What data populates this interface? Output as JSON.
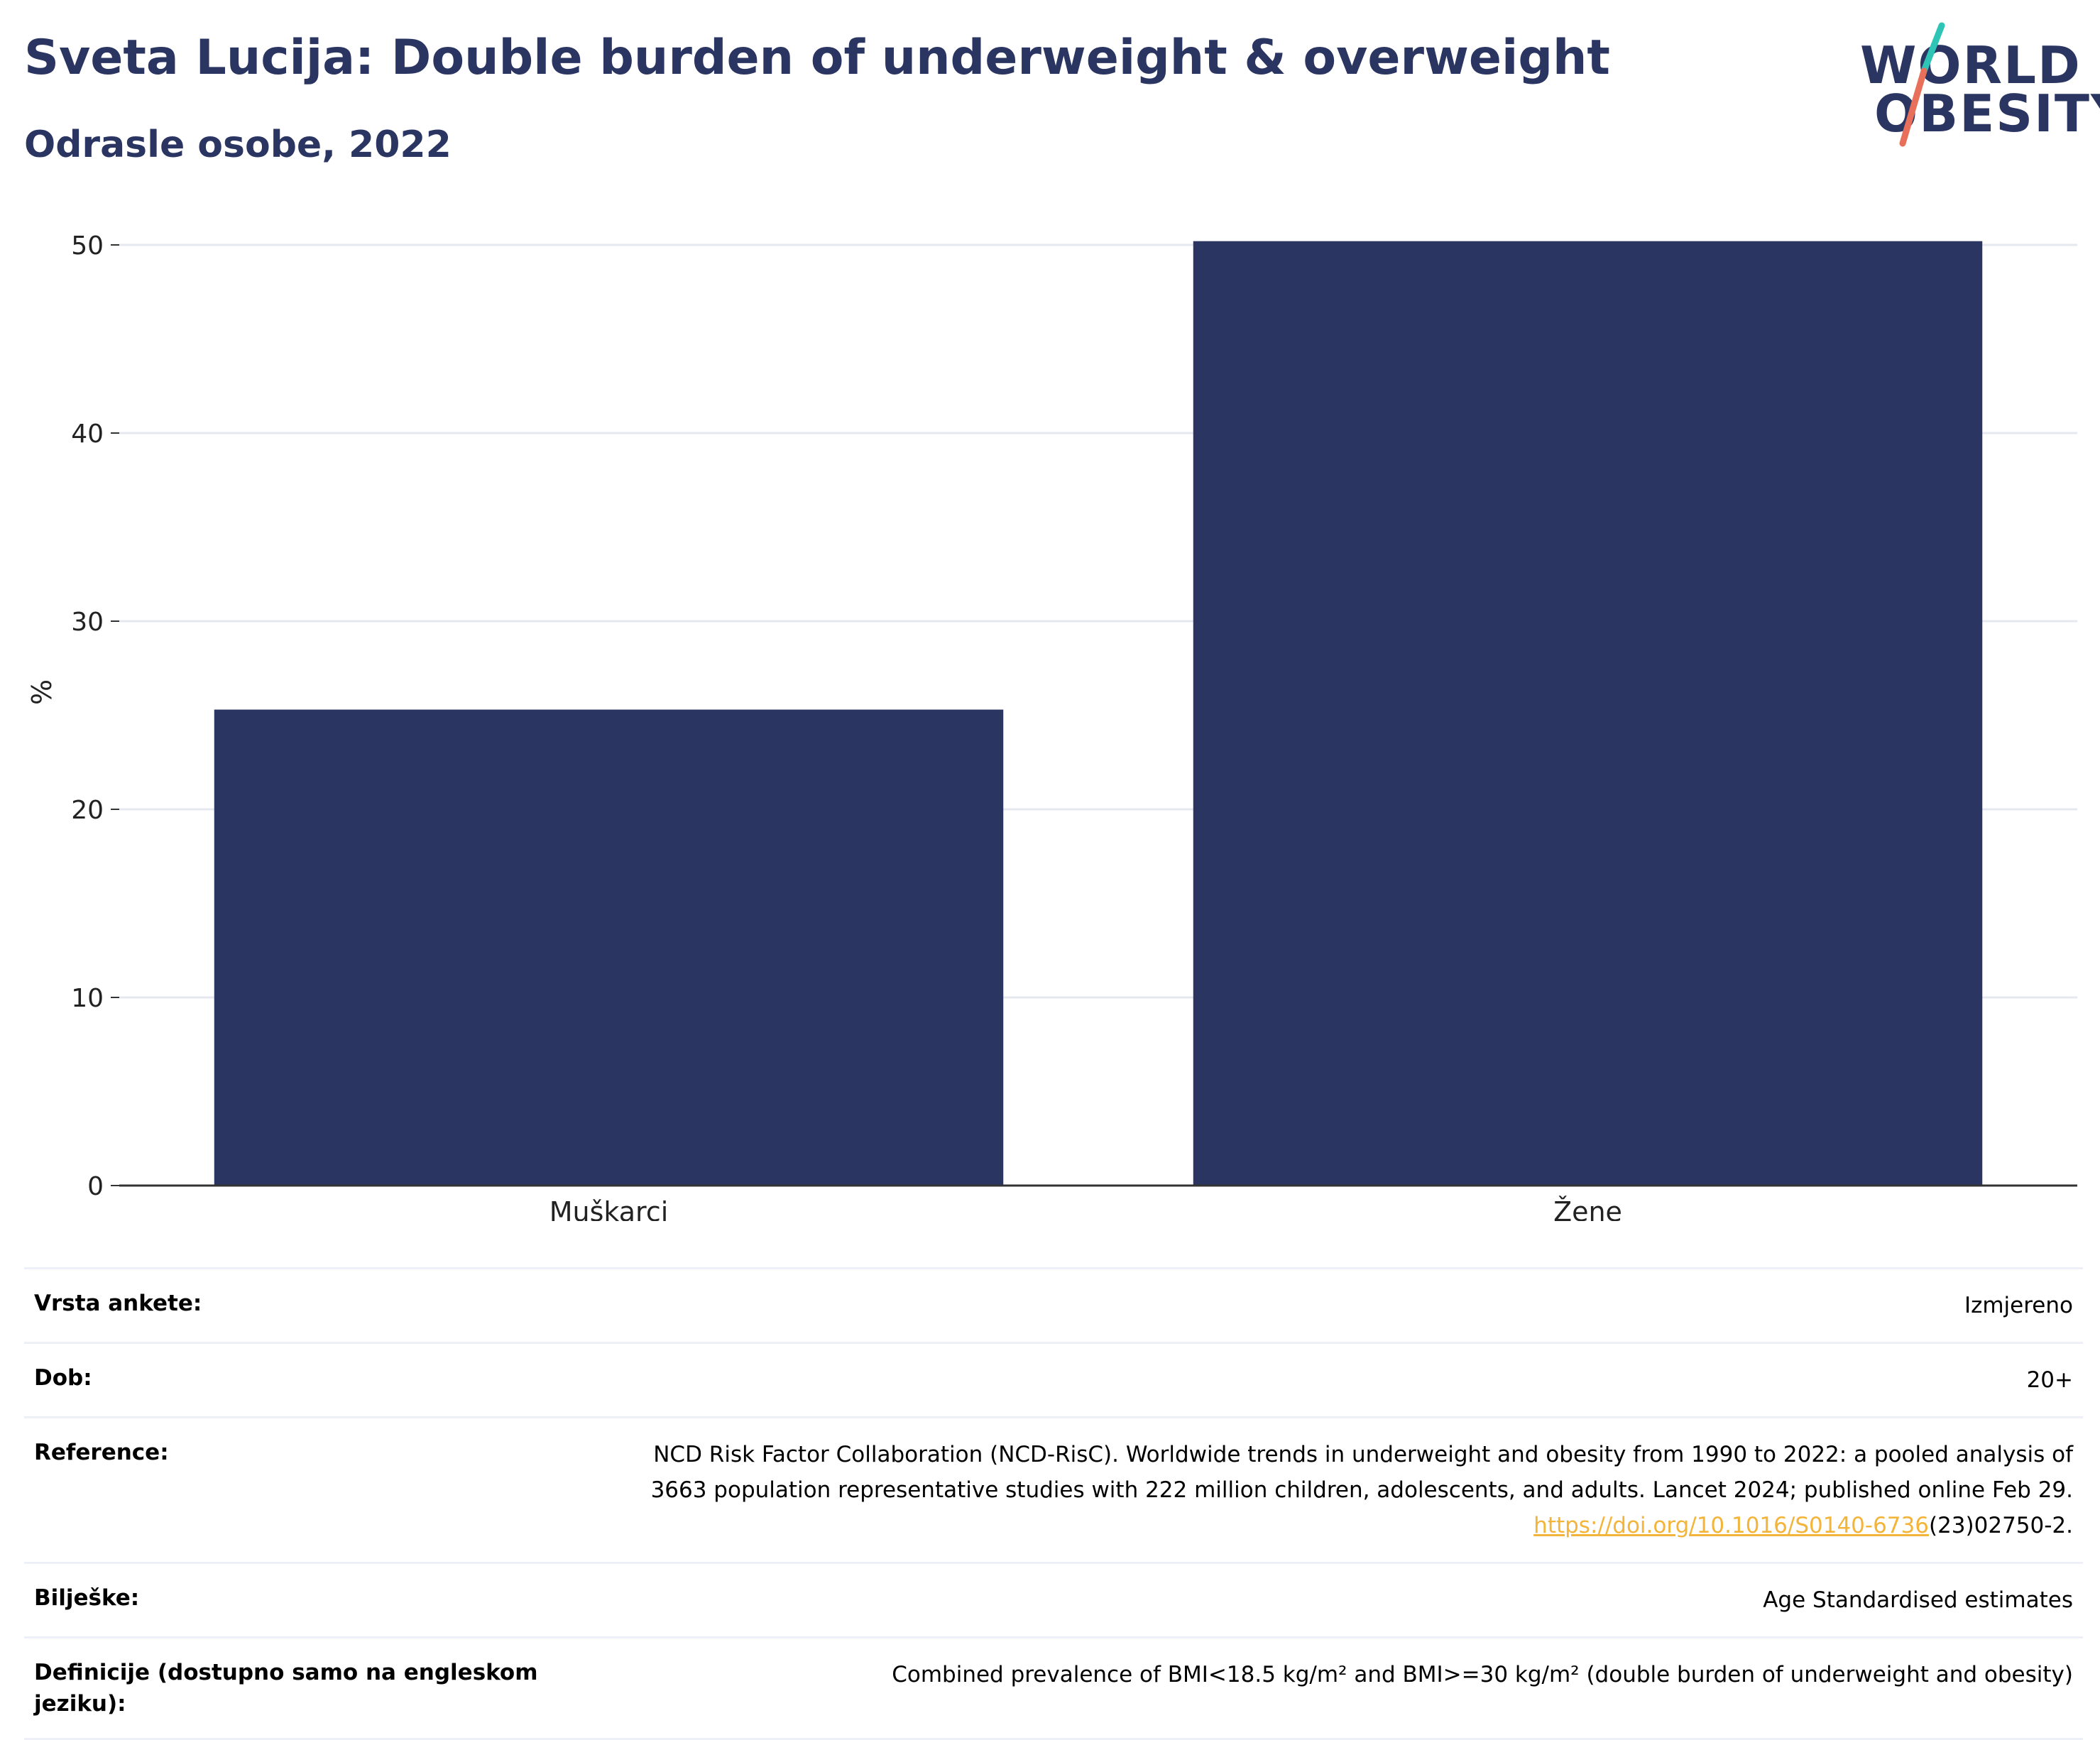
{
  "header": {
    "title": "Sveta Lucija: Double burden of underweight & overweight",
    "subtitle": "Odrasle osobe, 2022"
  },
  "logo": {
    "line1": "WORLD",
    "line2": "OBESITY",
    "slash_colors": [
      "#2ec4b6",
      "#e8705a"
    ]
  },
  "colors": {
    "bar": "#2b3562",
    "grid": "#e6e8ef",
    "axis": "#333333",
    "link": "#f3b43a"
  },
  "chart_data": {
    "type": "bar",
    "categories": [
      "Muškarci",
      "Žene"
    ],
    "values": [
      25.3,
      50.2
    ],
    "ylabel": "%",
    "ylim": [
      0,
      50
    ],
    "yticks": [
      0,
      10,
      20,
      30,
      40,
      50
    ],
    "grid": true
  },
  "info": {
    "survey_type_label": "Vrsta ankete:",
    "survey_type_value": "Izmjereno",
    "age_label": "Dob:",
    "age_value": "20+",
    "reference_label": "Reference:",
    "reference_line1": "NCD Risk Factor Collaboration (NCD-RisC). Worldwide trends in underweight and obesity from 1990 to 2022: a pooled analysis of",
    "reference_line2": "3663 population representative studies with 222 million children, adolescents, and adults. Lancet 2024; published online Feb 29.",
    "reference_link": "https://doi.org/10.1016/S0140-6736",
    "reference_tail": "(23)02750-2.",
    "notes_label": "Bilješke:",
    "notes_value": "Age Standardised estimates",
    "definitions_label": "Definicije (dostupno samo na engleskom jeziku):",
    "definitions_value": "Combined prevalence of BMI<18.5 kg/m² and BMI>=30 kg/m² (double burden of underweight and obesity)"
  }
}
